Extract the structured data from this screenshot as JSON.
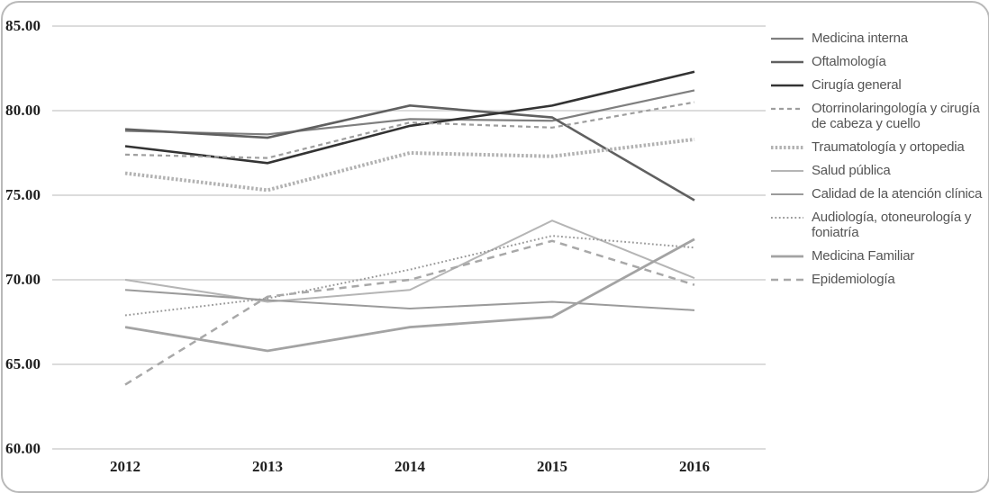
{
  "figure": {
    "background_color": "#ffffff",
    "border_color": "#b9b9b9",
    "gridline_color": "#dcdcdc"
  },
  "chart_data": {
    "type": "line",
    "title": "",
    "xlabel": "",
    "ylabel": "",
    "x_labels": [
      "2012",
      "2013",
      "2014",
      "2015",
      "2016"
    ],
    "ylim": [
      60,
      85
    ],
    "ytick_values": [
      85,
      80,
      75,
      70,
      65,
      60
    ],
    "ytick_labels": [
      "85.00",
      "80.00",
      "75.00",
      "70.00",
      "65.00",
      "60.00"
    ],
    "grid": "horizontal",
    "legend_position": "right",
    "series": [
      {
        "name": "Medicina interna",
        "values": [
          78.8,
          78.6,
          79.5,
          79.4,
          81.2
        ],
        "color": "#7f7f7f",
        "dash": "",
        "stroke_width": 2.2
      },
      {
        "name": "Oftalmología",
        "values": [
          78.9,
          78.4,
          80.3,
          79.6,
          74.7
        ],
        "color": "#606060",
        "dash": "",
        "stroke_width": 2.6
      },
      {
        "name": "Cirugía general",
        "values": [
          77.9,
          76.9,
          79.1,
          80.3,
          82.3
        ],
        "color": "#333333",
        "dash": "",
        "stroke_width": 2.6
      },
      {
        "name": "Otorrinolaringología y cirugía de cabeza y cuello",
        "values": [
          77.4,
          77.2,
          79.3,
          79.0,
          80.5
        ],
        "color": "#9e9e9e",
        "dash": "5 4",
        "stroke_width": 2.2
      },
      {
        "name": "Traumatología y ortopedia",
        "values": [
          76.3,
          75.3,
          77.5,
          77.3,
          78.3
        ],
        "color": "#b2b2b2",
        "dash": "2.5 2.2",
        "stroke_width": 4
      },
      {
        "name": "Salud pública",
        "values": [
          70.0,
          68.7,
          69.4,
          73.5,
          70.1
        ],
        "color": "#b5b5b5",
        "dash": "",
        "stroke_width": 2
      },
      {
        "name": "Calidad de la atención clínica",
        "values": [
          69.4,
          68.8,
          68.3,
          68.7,
          68.2
        ],
        "color": "#9b9b9b",
        "dash": "",
        "stroke_width": 2
      },
      {
        "name": "Audiología, otoneurología y foniatría",
        "values": [
          67.9,
          68.9,
          70.6,
          72.6,
          71.9
        ],
        "color": "#999999",
        "dash": "1.8 2.6",
        "stroke_width": 2
      },
      {
        "name": "Medicina Familiar",
        "values": [
          67.2,
          65.8,
          67.2,
          67.8,
          72.4
        ],
        "color": "#a3a3a3",
        "dash": "",
        "stroke_width": 2.8
      },
      {
        "name": "Epidemiología",
        "values": [
          63.8,
          69.0,
          70.0,
          72.3,
          69.7
        ],
        "color": "#a8a8a8",
        "dash": "8 6",
        "stroke_width": 2.5
      }
    ]
  }
}
